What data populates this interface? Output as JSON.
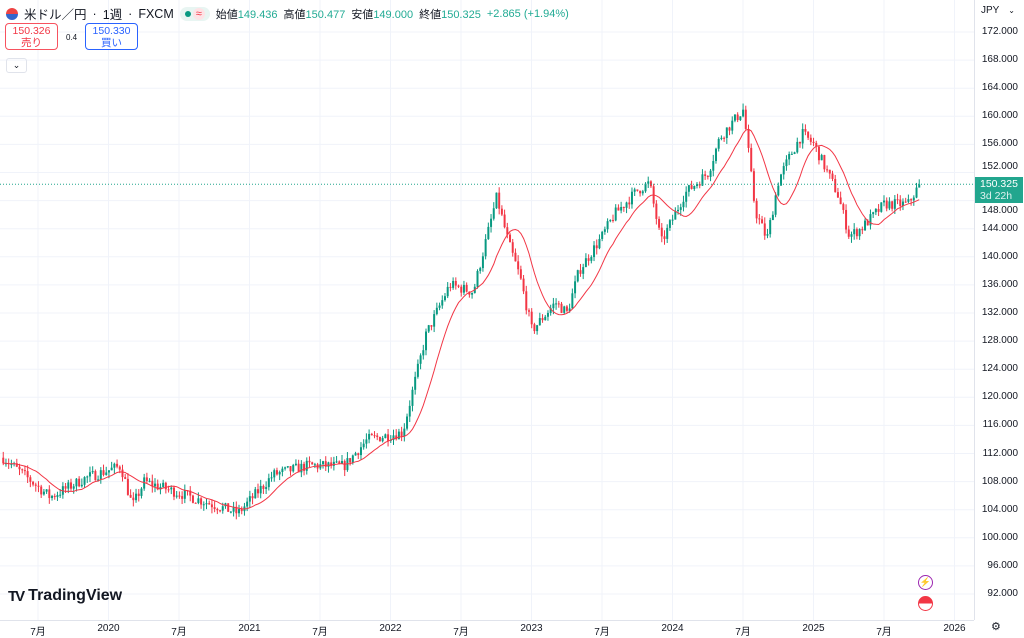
{
  "header": {
    "symbol": "米ドル／円",
    "interval": "1週",
    "source": "FXCM",
    "approx_icon": "≈",
    "ohlc": [
      {
        "label": "始値",
        "value": "149.436"
      },
      {
        "label": "高値",
        "value": "150.477"
      },
      {
        "label": "安値",
        "value": "149.000"
      },
      {
        "label": "終値",
        "value": "150.325"
      }
    ],
    "change": "+2.865 (+1.94%)"
  },
  "trade": {
    "sell_price": "150.326",
    "sell_label": "売り",
    "spread": "0.4",
    "buy_price": "150.330",
    "buy_label": "買い",
    "collapse": "⌄"
  },
  "price_axis": {
    "currency": "JPY",
    "ticks": [
      "172.000",
      "168.000",
      "164.000",
      "160.000",
      "156.000",
      "152.000",
      "148.000",
      "144.000",
      "140.000",
      "136.000",
      "132.000",
      "128.000",
      "124.000",
      "120.000",
      "116.000",
      "112.000",
      "108.000",
      "104.000",
      "100.000",
      "96.000",
      "92.000"
    ],
    "current_price": "150.325",
    "countdown": "3d 22h"
  },
  "time_axis": {
    "ticks": [
      "7月",
      "2020",
      "7月",
      "2021",
      "7月",
      "2022",
      "7月",
      "2023",
      "7月",
      "2024",
      "7月",
      "2025",
      "7月",
      "2026"
    ]
  },
  "logo": "TradingView",
  "colors": {
    "up": "#089981",
    "down": "#f23645",
    "ma": "#f23645",
    "grid": "#f0f3fa"
  },
  "chart_data": {
    "type": "candlestick",
    "ylim": [
      90,
      174
    ],
    "price_path": [
      [
        "2019-04",
        111.4
      ],
      [
        "2019-08",
        105.8
      ],
      [
        "2019-11",
        108.5
      ],
      [
        "2020-02",
        110.2
      ],
      [
        "2020-03",
        104.5
      ],
      [
        "2020-04",
        108
      ],
      [
        "2020-08",
        105.8
      ],
      [
        "2020-12",
        103.5
      ],
      [
        "2021-03",
        109
      ],
      [
        "2021-06",
        110.3
      ],
      [
        "2021-09",
        110.2
      ],
      [
        "2021-11",
        114
      ],
      [
        "2022-02",
        115
      ],
      [
        "2022-03",
        122
      ],
      [
        "2022-04",
        129
      ],
      [
        "2022-06",
        136
      ],
      [
        "2022-08",
        135
      ],
      [
        "2022-10",
        148.5
      ],
      [
        "2022-11",
        142
      ],
      [
        "2022-12",
        137
      ],
      [
        "2023-01",
        129.5
      ],
      [
        "2023-03",
        133.5
      ],
      [
        "2023-04",
        132
      ],
      [
        "2023-05",
        138
      ],
      [
        "2023-07",
        143
      ],
      [
        "2023-08",
        146
      ],
      [
        "2023-10",
        149.5
      ],
      [
        "2023-11",
        150.5
      ],
      [
        "2023-12",
        142
      ],
      [
        "2024-02",
        149
      ],
      [
        "2024-04",
        152
      ],
      [
        "2024-05",
        157
      ],
      [
        "2024-07",
        161
      ],
      [
        "2024-08",
        146.5
      ],
      [
        "2024-09",
        142.5
      ],
      [
        "2024-10",
        151
      ],
      [
        "2024-11",
        154.5
      ],
      [
        "2024-12",
        157.5
      ],
      [
        "2025-01",
        156
      ],
      [
        "2025-03",
        149
      ],
      [
        "2025-04",
        143
      ],
      [
        "2025-05",
        144
      ],
      [
        "2025-07",
        147.5
      ],
      [
        "2025-09",
        147.5
      ],
      [
        "2025-10",
        150.3
      ]
    ],
    "ma_period": 13
  }
}
